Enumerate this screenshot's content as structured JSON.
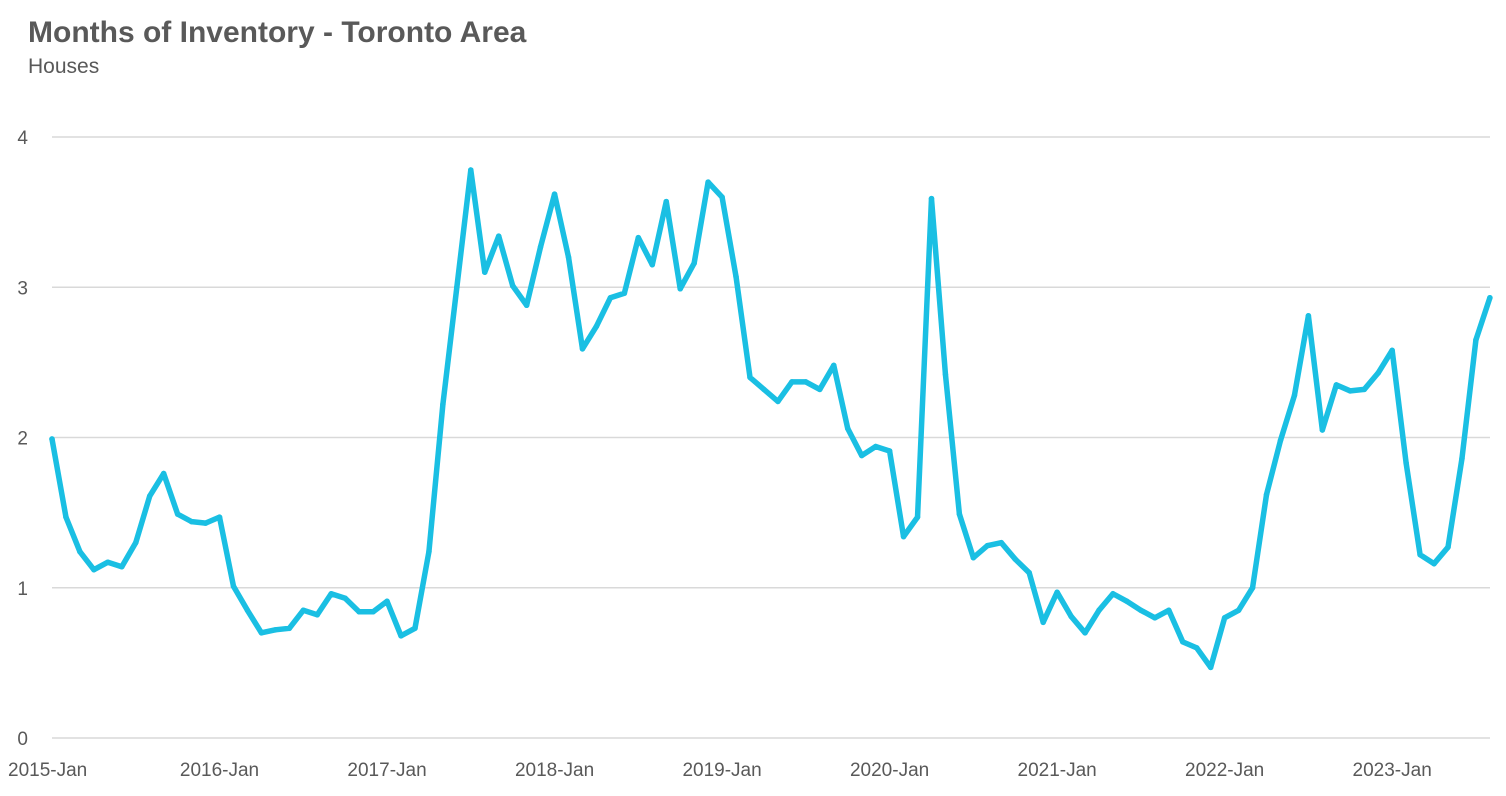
{
  "chart_data": {
    "type": "line",
    "title": "Months of Inventory - Toronto Area",
    "subtitle": "Houses",
    "xlabel": "",
    "ylabel": "",
    "ylim": [
      0,
      4
    ],
    "yticks": [
      "0",
      "1",
      "2",
      "3",
      "4"
    ],
    "x_tick_labels": [
      "2015-Jan",
      "2016-Jan",
      "2017-Jan",
      "2018-Jan",
      "2019-Jan",
      "2020-Jan",
      "2021-Jan",
      "2022-Jan",
      "2023-Jan"
    ],
    "grid": true,
    "legend": "none",
    "line_color": "#1ABFE3",
    "grid_color": "#D9D9D9",
    "series": [
      {
        "x": [
          "2015-01",
          "2015-02",
          "2015-03",
          "2015-04",
          "2015-05",
          "2015-06",
          "2015-07",
          "2015-08",
          "2015-09",
          "2015-10",
          "2015-11",
          "2015-12",
          "2016-01",
          "2016-02",
          "2016-03",
          "2016-04",
          "2016-05",
          "2016-06",
          "2016-07",
          "2016-08",
          "2016-09",
          "2016-10",
          "2016-11",
          "2016-12",
          "2017-01",
          "2017-02",
          "2017-03",
          "2017-04",
          "2017-05",
          "2017-06",
          "2017-07",
          "2017-08",
          "2017-09",
          "2017-10",
          "2017-11",
          "2017-12",
          "2018-01",
          "2018-02",
          "2018-03",
          "2018-04",
          "2018-05",
          "2018-06",
          "2018-07",
          "2018-08",
          "2018-09",
          "2018-10",
          "2018-11",
          "2018-12",
          "2019-01",
          "2019-02",
          "2019-03",
          "2019-04",
          "2019-05",
          "2019-06",
          "2019-07",
          "2019-08",
          "2019-09",
          "2019-10",
          "2019-11",
          "2019-12",
          "2020-01",
          "2020-02",
          "2020-03",
          "2020-04",
          "2020-05",
          "2020-06",
          "2020-07",
          "2020-08",
          "2020-09",
          "2020-10",
          "2020-11",
          "2020-12",
          "2021-01",
          "2021-02",
          "2021-03",
          "2021-04",
          "2021-05",
          "2021-06",
          "2021-07",
          "2021-08",
          "2021-09",
          "2021-10",
          "2021-11",
          "2021-12",
          "2022-01",
          "2022-02",
          "2022-03",
          "2022-04",
          "2022-05",
          "2022-06",
          "2022-07",
          "2022-08",
          "2022-09",
          "2022-10",
          "2022-11",
          "2022-12",
          "2023-01",
          "2023-02",
          "2023-03",
          "2023-04",
          "2023-05",
          "2023-06",
          "2023-07",
          "2023-08"
        ],
        "values": [
          1.99,
          1.47,
          1.24,
          1.12,
          1.17,
          1.14,
          1.3,
          1.61,
          1.76,
          1.49,
          1.44,
          1.43,
          1.47,
          1.01,
          0.85,
          0.7,
          0.72,
          0.73,
          0.85,
          0.82,
          0.96,
          0.93,
          0.84,
          0.84,
          0.91,
          0.68,
          0.73,
          1.24,
          2.22,
          3.0,
          3.78,
          3.1,
          3.34,
          3.01,
          2.88,
          3.27,
          3.62,
          3.2,
          2.59,
          2.74,
          2.93,
          2.96,
          3.33,
          3.15,
          3.57,
          2.99,
          3.16,
          3.7,
          3.6,
          3.07,
          2.4,
          2.32,
          2.24,
          2.37,
          2.37,
          2.32,
          2.48,
          2.06,
          1.88,
          1.94,
          1.91,
          1.34,
          1.47,
          3.59,
          2.42,
          1.49,
          1.2,
          1.28,
          1.3,
          1.19,
          1.1,
          0.77,
          0.97,
          0.81,
          0.7,
          0.85,
          0.96,
          0.91,
          0.85,
          0.8,
          0.85,
          0.64,
          0.6,
          0.47,
          0.8,
          0.85,
          1.0,
          1.62,
          1.98,
          2.28,
          2.81,
          2.05,
          2.35,
          2.31,
          2.32,
          2.43,
          2.58,
          1.83,
          1.22,
          1.16,
          1.27,
          1.86,
          2.65,
          2.93
        ]
      }
    ]
  }
}
